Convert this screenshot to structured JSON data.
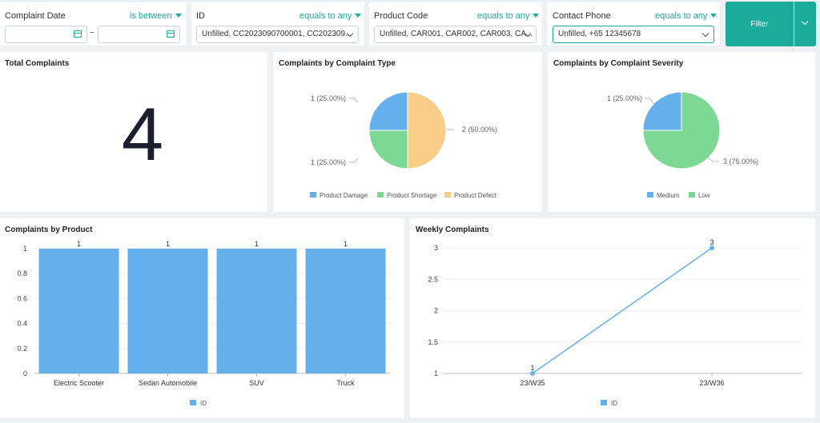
{
  "filters": {
    "complaint_date": {
      "label": "Complaint Date",
      "operator": "is between",
      "separator": "~"
    },
    "id": {
      "label": "ID",
      "operator": "equals to any",
      "value": "Unfilled, CC2023090700001, CC202309..."
    },
    "product_code": {
      "label": "Product Code",
      "operator": "equals to any",
      "value": "Unfilled, CAR001, CAR002, CAR003, CA..."
    },
    "contact_phone": {
      "label": "Contact Phone",
      "operator": "equals to any",
      "value": "Unfilled, +65 12345678"
    },
    "filter_button": "Filter"
  },
  "cards": {
    "total": {
      "title": "Total Complaints",
      "value": "4"
    },
    "type": {
      "title": "Complaints by Complaint Type"
    },
    "severity": {
      "title": "Complaints by Complaint Severity"
    },
    "product": {
      "title": "Complaints by Product"
    },
    "weekly": {
      "title": "Weekly Complaints"
    }
  },
  "colors": {
    "accent": "#1aab9b",
    "blue": "#64b0ec",
    "green": "#7dd893",
    "orange": "#f7cd87"
  },
  "chart_data": [
    {
      "type": "pie",
      "title": "Complaints by Complaint Type",
      "slices": [
        {
          "name": "Product Damage",
          "value": 1,
          "label": "1 (25.00%)",
          "color": "#64b0ec"
        },
        {
          "name": "Product Shortage",
          "value": 1,
          "label": "1 (25.00%)",
          "color": "#7dd893"
        },
        {
          "name": "Product Defect",
          "value": 2,
          "label": "2 (50.00%)",
          "color": "#f7cd87"
        }
      ],
      "legend": "bottom"
    },
    {
      "type": "pie",
      "title": "Complaints by Complaint Severity",
      "slices": [
        {
          "name": "Medium",
          "value": 1,
          "label": "1 (25.00%)",
          "color": "#64b0ec"
        },
        {
          "name": "Low",
          "value": 3,
          "label": "3 (75.00%)",
          "color": "#7dd893"
        }
      ],
      "legend": "bottom"
    },
    {
      "type": "bar",
      "title": "Complaints by Product",
      "categories": [
        "Electric Scooter",
        "Sedan Automobile",
        "SUV",
        "Truck"
      ],
      "series": [
        {
          "name": "ID",
          "values": [
            1,
            1,
            1,
            1
          ]
        }
      ],
      "ylim": [
        0,
        1
      ],
      "yticks": [
        "0",
        "0.2",
        "0.4",
        "0.6",
        "0.8",
        "1"
      ],
      "grid": true,
      "legend": "bottom"
    },
    {
      "type": "line",
      "title": "Weekly Complaints",
      "categories": [
        "23/W35",
        "23/W36"
      ],
      "series": [
        {
          "name": "ID",
          "values": [
            1,
            3
          ]
        }
      ],
      "ylim": [
        1,
        3
      ],
      "yticks": [
        "1",
        "1.5",
        "2",
        "2.5",
        "3"
      ],
      "grid": true,
      "legend": "bottom"
    }
  ]
}
